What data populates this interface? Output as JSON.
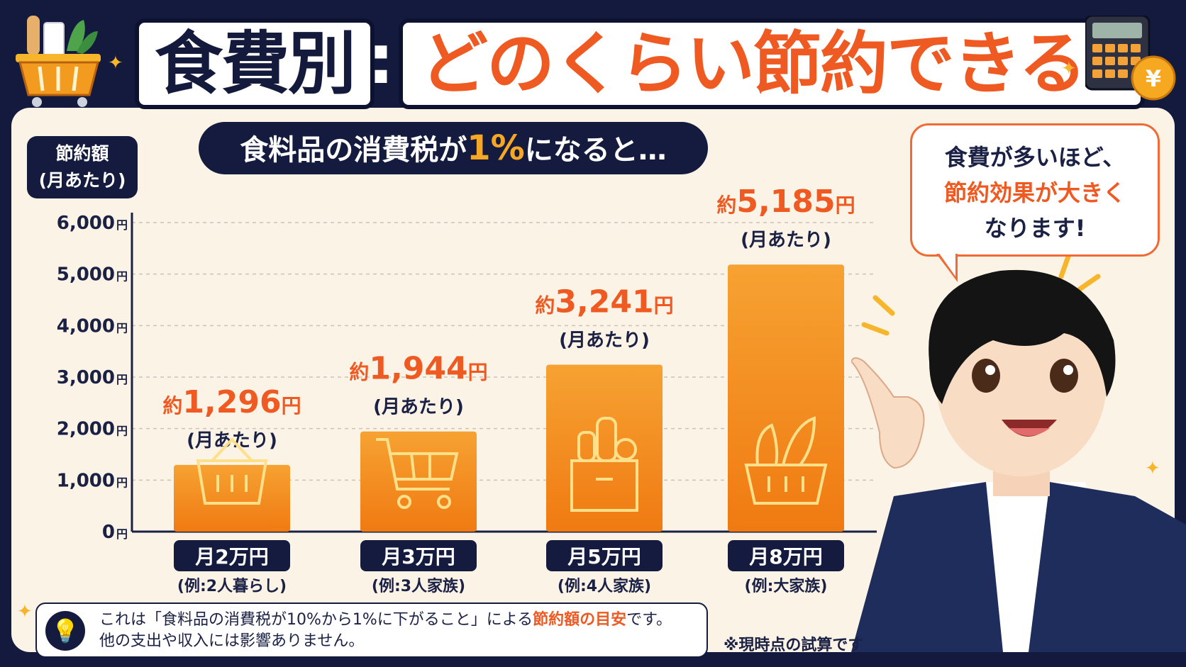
{
  "title": {
    "left": "食費別",
    "colon": ":",
    "right": "どのくらい節約できる?"
  },
  "subtitle": {
    "prefix": "食料品の消費税が",
    "highlight": "1%",
    "suffix": "になると…"
  },
  "y_title": {
    "line1": "節約額",
    "line2": "(月あたり)"
  },
  "bubble": {
    "line1": "食費が多いほど、",
    "line2": "節約効果が大きく",
    "line3": "なります!"
  },
  "note": {
    "text1_pre": "これは「食料品の消費税が10%から1%に下がること」による",
    "text1_hl": "節約額の目安",
    "text1_post": "です。",
    "text2": "他の支出や収入には影響ありません。"
  },
  "disclaimer": "※現時点の試算です",
  "colors": {
    "navy": "#141b3e",
    "orange": "#ee5a22",
    "bar": "#f5901e",
    "panel": "#fbf3e6"
  },
  "chart_data": {
    "type": "bar",
    "y_ticks": [
      "6,000",
      "5,000",
      "4,000",
      "3,000",
      "2,000",
      "1,000",
      "0"
    ],
    "y_tick_values": [
      6000,
      5000,
      4000,
      3000,
      2000,
      1000,
      0
    ],
    "y_unit": "円",
    "ylim": [
      0,
      6000
    ],
    "grid": true,
    "categories": [
      "月2万円",
      "月3万円",
      "月5万円",
      "月8万円"
    ],
    "examples": [
      "(例:2人暮らし)",
      "(例:3人家族)",
      "(例:4人家族)",
      "(例:大家族)"
    ],
    "values": [
      1296,
      1944,
      3241,
      5185
    ],
    "value_labels": [
      "1,296",
      "1,944",
      "3,241",
      "5,185"
    ],
    "value_prefix": "約",
    "value_suffix": "円",
    "per_month": "(月あたり)",
    "icons": [
      "basket-icon",
      "shopping-cart-icon",
      "grocery-bag-icon",
      "vegetable-basket-icon"
    ]
  }
}
